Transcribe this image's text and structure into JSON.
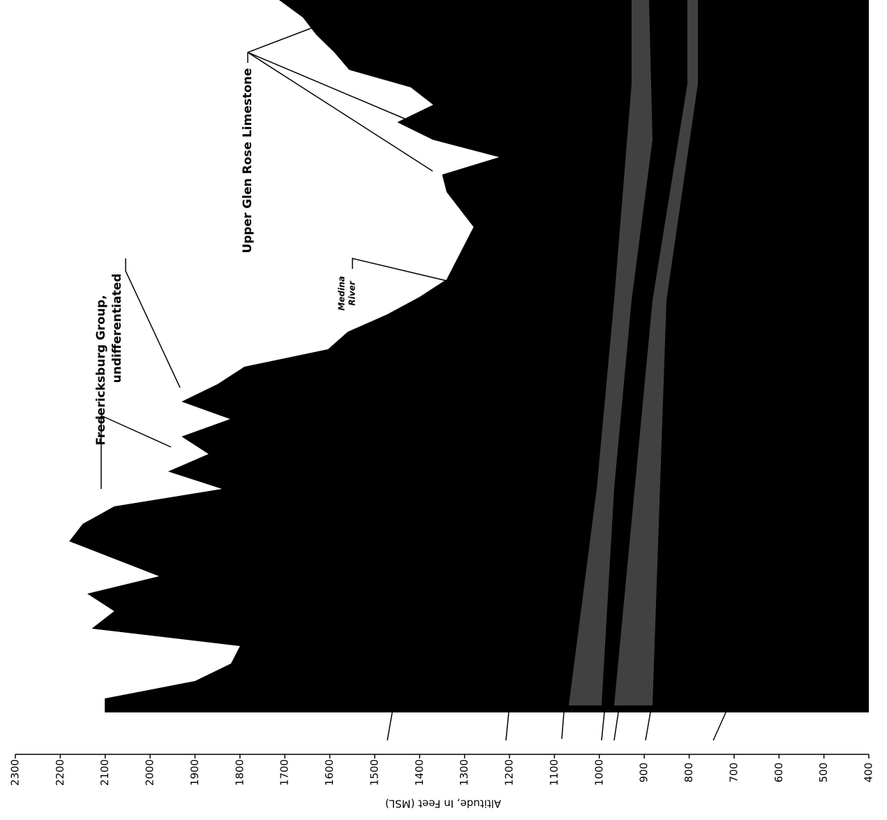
{
  "chart_data": {
    "type": "profile",
    "axis_label": "Altitude, In Feet (MSL)",
    "annotations": [
      "Fredericksburg Group,",
      "undifferentiated",
      "Upper Glen Rose Limestone",
      "Medina",
      "River"
    ],
    "values": [
      1713,
      1660,
      1630,
      1590,
      1557,
      1420,
      1370,
      1450,
      1371,
      1223,
      1350,
      1340,
      1310,
      1280,
      1300,
      1320,
      1340,
      1400,
      1472,
      1560,
      1604,
      1790,
      1850,
      1930,
      1822,
      1930,
      1870,
      1960,
      1840,
      2080,
      2150,
      2180,
      2080,
      1980,
      2140,
      2080,
      2130,
      1800,
      1820,
      1900,
      2101
    ],
    "color": "#000000",
    "ylim": [
      2300,
      400
    ],
    "yticks": [
      2300,
      2200,
      2100,
      2000,
      1900,
      1800,
      1700,
      1600,
      1500,
      1400,
      1300,
      1200,
      1100,
      1000,
      900,
      800,
      700,
      600,
      500,
      400
    ]
  }
}
